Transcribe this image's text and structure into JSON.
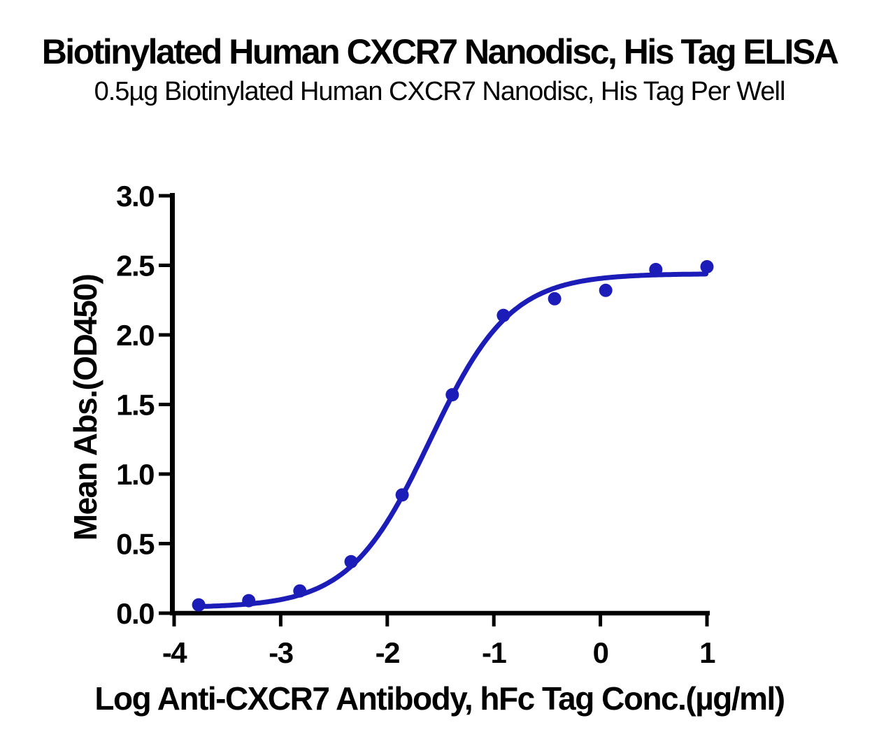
{
  "page": {
    "background_color": "#ffffff",
    "text_color": "#000000"
  },
  "chart_data": {
    "type": "scatter",
    "title": "Biotinylated Human CXCR7 Nanodisc, His Tag ELISA",
    "subtitle": "0.5µg Biotinylated Human CXCR7 Nanodisc, His Tag Per Well",
    "xlabel": "Log Anti-CXCR7 Antibody, hFc Tag Conc.(µg/ml)",
    "ylabel": "Mean Abs.(OD450)",
    "xlim": [
      -4,
      1
    ],
    "ylim": [
      0,
      3
    ],
    "x_ticks": [
      -4,
      -3,
      -2,
      -1,
      0,
      1
    ],
    "x_tick_labels": [
      "-4",
      "-3",
      "-2",
      "-1",
      "0",
      "1"
    ],
    "y_ticks": [
      0,
      0.5,
      1,
      1.5,
      2,
      2.5,
      3
    ],
    "y_tick_labels": [
      "0.0",
      "0.5",
      "1.0",
      "1.5",
      "2.0",
      "2.5",
      "3.0"
    ],
    "grid": false,
    "legend_position": "none",
    "axis_color": "#000000",
    "series": [
      {
        "color": "#1C1CB8",
        "marker": "circle",
        "points": [
          {
            "x": -3.77,
            "y": 0.06
          },
          {
            "x": -3.3,
            "y": 0.09
          },
          {
            "x": -2.82,
            "y": 0.16
          },
          {
            "x": -2.34,
            "y": 0.37
          },
          {
            "x": -1.86,
            "y": 0.85
          },
          {
            "x": -1.39,
            "y": 1.57
          },
          {
            "x": -0.91,
            "y": 2.14
          },
          {
            "x": -0.43,
            "y": 2.26
          },
          {
            "x": 0.05,
            "y": 2.32
          },
          {
            "x": 0.52,
            "y": 2.47
          },
          {
            "x": 1.0,
            "y": 2.49
          }
        ],
        "fit_curve": {
          "model": "4PL",
          "bottom": 0.04,
          "top": 2.44,
          "log_ec50": -1.6,
          "hill_slope": 1.15,
          "x_start": -3.77,
          "x_end": 1.0
        }
      }
    ]
  }
}
